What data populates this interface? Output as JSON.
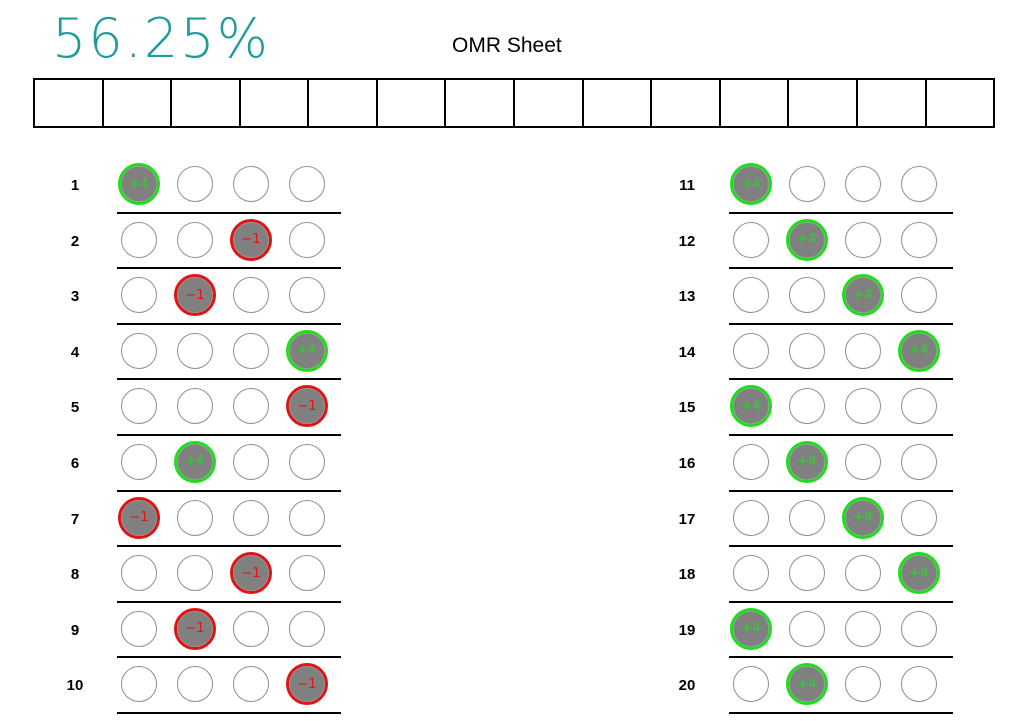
{
  "score": "56.25%",
  "title": "OMR Sheet",
  "id_box_count": 14,
  "colors": {
    "score": "#1e9c99",
    "correct": "#1fdc1f",
    "wrong": "#e01414",
    "filled_bubble": "#808080",
    "empty_bubble_border": "#8f8f8f"
  },
  "options_per_question": 4,
  "questions": [
    {
      "number": "1",
      "marked": 0,
      "result": "correct",
      "mark_label": "+4"
    },
    {
      "number": "2",
      "marked": 2,
      "result": "wrong",
      "mark_label": "−1"
    },
    {
      "number": "3",
      "marked": 1,
      "result": "wrong",
      "mark_label": "−1"
    },
    {
      "number": "4",
      "marked": 3,
      "result": "correct",
      "mark_label": "+4"
    },
    {
      "number": "5",
      "marked": 3,
      "result": "wrong",
      "mark_label": "−1"
    },
    {
      "number": "6",
      "marked": 1,
      "result": "correct",
      "mark_label": "+4"
    },
    {
      "number": "7",
      "marked": 0,
      "result": "wrong",
      "mark_label": "−1"
    },
    {
      "number": "8",
      "marked": 2,
      "result": "wrong",
      "mark_label": "−1"
    },
    {
      "number": "9",
      "marked": 1,
      "result": "wrong",
      "mark_label": "−1"
    },
    {
      "number": "10",
      "marked": 3,
      "result": "wrong",
      "mark_label": "−1"
    },
    {
      "number": "11",
      "marked": 0,
      "result": "correct",
      "mark_label": "+4"
    },
    {
      "number": "12",
      "marked": 1,
      "result": "correct",
      "mark_label": "+4"
    },
    {
      "number": "13",
      "marked": 2,
      "result": "correct",
      "mark_label": "+4"
    },
    {
      "number": "14",
      "marked": 3,
      "result": "correct",
      "mark_label": "+4"
    },
    {
      "number": "15",
      "marked": 0,
      "result": "correct",
      "mark_label": "+4"
    },
    {
      "number": "16",
      "marked": 1,
      "result": "correct",
      "mark_label": "+4"
    },
    {
      "number": "17",
      "marked": 2,
      "result": "correct",
      "mark_label": "+4"
    },
    {
      "number": "18",
      "marked": 3,
      "result": "correct",
      "mark_label": "+4"
    },
    {
      "number": "19",
      "marked": 0,
      "result": "correct",
      "mark_label": "+4"
    },
    {
      "number": "20",
      "marked": 1,
      "result": "correct",
      "mark_label": "+4"
    }
  ]
}
